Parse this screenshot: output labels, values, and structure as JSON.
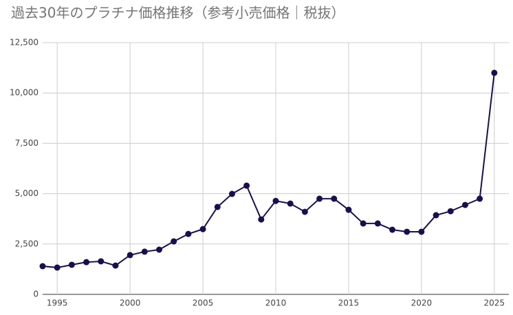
{
  "chart_data": {
    "type": "line",
    "title": "過去30年のプラチナ価格推移（参考小売価格｜税抜）",
    "x": [
      1994,
      1995,
      1996,
      1997,
      1998,
      1999,
      2000,
      2001,
      2002,
      2003,
      2004,
      2005,
      2006,
      2007,
      2008,
      2009,
      2010,
      2011,
      2012,
      2013,
      2014,
      2015,
      2016,
      2017,
      2018,
      2019,
      2020,
      2021,
      2022,
      2023,
      2024,
      2025
    ],
    "series": [
      {
        "color": "#160f50",
        "values": [
          1400,
          1330,
          1470,
          1600,
          1640,
          1430,
          1950,
          2120,
          2220,
          2630,
          3000,
          3240,
          4340,
          4990,
          5400,
          3720,
          4640,
          4510,
          4100,
          4750,
          4750,
          4200,
          3520,
          3520,
          3210,
          3110,
          3110,
          3930,
          4130,
          4440,
          4750,
          11000
        ]
      }
    ],
    "xlim": [
      1994,
      2026
    ],
    "xticks": [
      1995,
      2000,
      2005,
      2010,
      2015,
      2020,
      2025
    ],
    "ylim": [
      0,
      12500
    ],
    "yticks": [
      0,
      {
        "value": 2500,
        "label": "2,500"
      },
      {
        "value": 5000,
        "label": "5,000"
      },
      {
        "value": 7500,
        "label": "7,500"
      },
      {
        "value": 10000,
        "label": "10,000"
      },
      {
        "value": 12500,
        "label": "12,500"
      }
    ],
    "grid": true
  }
}
